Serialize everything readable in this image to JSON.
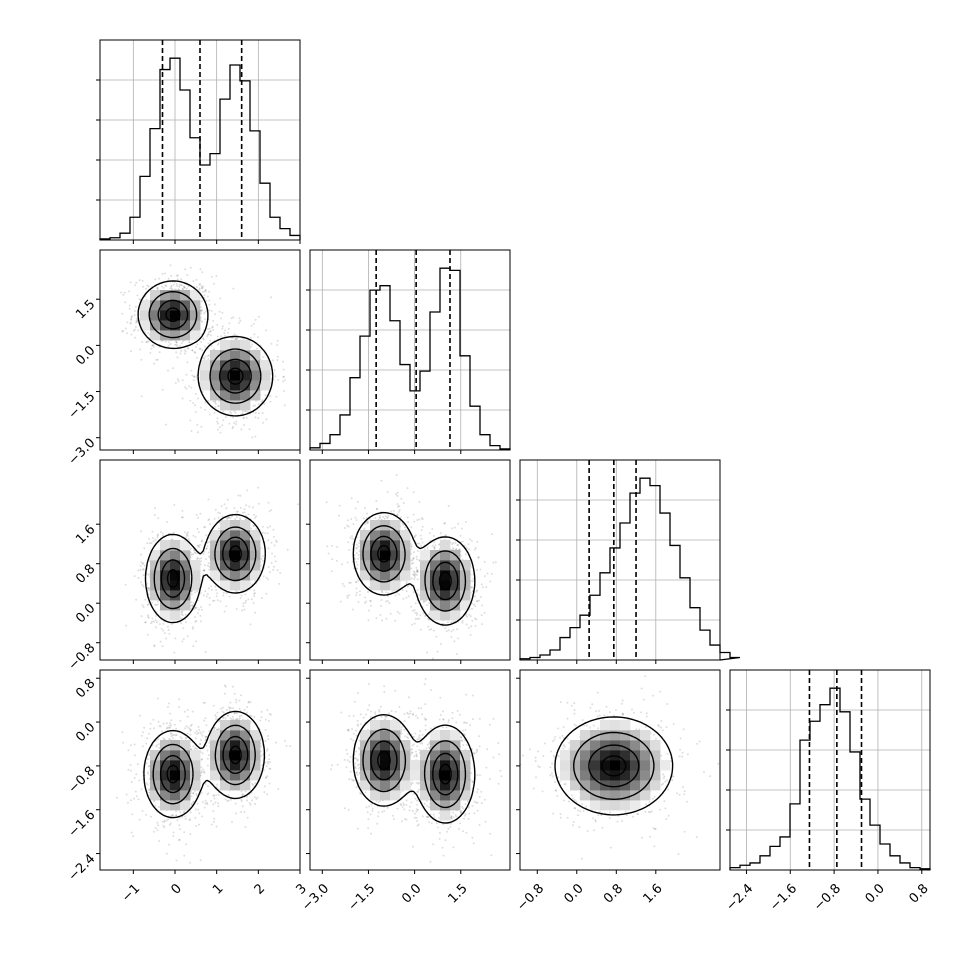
{
  "chart_data": {
    "type": "corner",
    "params": 4,
    "grid": true,
    "axes": [
      {
        "range": [
          -1.8,
          3.0
        ],
        "ticks": [
          -1,
          0,
          1,
          2,
          3
        ],
        "tick_labels": [
          "−1",
          "0",
          "1",
          "2",
          "3"
        ]
      },
      {
        "range": [
          -3.4,
          3.1
        ],
        "ticks": [
          -3.0,
          -1.5,
          0.0,
          1.5
        ],
        "tick_labels": [
          "−3.0",
          "−1.5",
          "0.0",
          "1.5"
        ]
      },
      {
        "range": [
          -1.15,
          2.9
        ],
        "ticks": [
          -0.8,
          0.0,
          0.8,
          1.6
        ],
        "tick_labels": [
          "−0.8",
          "0.0",
          "0.8",
          "1.6"
        ]
      },
      {
        "range": [
          -2.7,
          0.95
        ],
        "ticks": [
          -2.4,
          -1.6,
          -0.8,
          0.0,
          0.8
        ],
        "tick_labels": [
          "−2.4",
          "−1.6",
          "−0.8",
          "0.0",
          "0.8"
        ]
      }
    ],
    "histograms": [
      {
        "param": 0,
        "bin_start": -1.8,
        "bin_width": 0.24,
        "counts": [
          0.5,
          1,
          3,
          10,
          28,
          49,
          75,
          80,
          66,
          45,
          33,
          38,
          62,
          77,
          70,
          48,
          25,
          10,
          5,
          2
        ],
        "quantiles": [
          -0.3,
          0.6,
          1.6
        ]
      },
      {
        "param": 1,
        "bin_start": -3.4,
        "bin_width": 0.325,
        "counts": [
          1,
          3,
          7,
          16,
          33,
          52,
          73,
          75,
          59,
          39,
          27,
          36,
          63,
          83,
          82,
          43,
          20,
          7,
          2,
          0.5
        ],
        "quantiles": [
          -1.25,
          0.05,
          1.15
        ]
      },
      {
        "param": 2,
        "bin_start": -1.15,
        "bin_width": 0.2025,
        "counts": [
          0.5,
          1,
          2,
          4,
          9,
          13,
          18,
          26,
          35,
          45,
          55,
          67,
          73,
          70,
          59,
          46,
          33,
          21,
          12,
          6,
          3,
          1
        ],
        "quantiles": [
          0.25,
          0.75,
          1.2
        ]
      },
      {
        "param": 3,
        "bin_start": -2.7,
        "bin_width": 0.1825,
        "counts": [
          1,
          2,
          3,
          6,
          10,
          14,
          28,
          55,
          63,
          70,
          77,
          67,
          50,
          30,
          19,
          11,
          6,
          3,
          1,
          0.5
        ],
        "quantiles": [
          -1.25,
          -0.75,
          -0.3
        ]
      }
    ],
    "pairs": [
      {
        "x": 0,
        "y": 1,
        "modes": [
          {
            "x": -0.05,
            "y": 1.0,
            "sx": 0.42,
            "sy": 0.55,
            "w": 1
          },
          {
            "x": 1.45,
            "y": -1.0,
            "sx": 0.45,
            "sy": 0.65,
            "w": 1
          }
        ]
      },
      {
        "x": 0,
        "y": 2,
        "modes": [
          {
            "x": -0.05,
            "y": 0.5,
            "sx": 0.33,
            "sy": 0.45,
            "w": 1
          },
          {
            "x": 1.45,
            "y": 1.0,
            "sx": 0.36,
            "sy": 0.4,
            "w": 1
          }
        ]
      },
      {
        "x": 0,
        "y": 3,
        "modes": [
          {
            "x": -0.05,
            "y": -0.95,
            "sx": 0.35,
            "sy": 0.4,
            "w": 1
          },
          {
            "x": 1.45,
            "y": -0.6,
            "sx": 0.35,
            "sy": 0.4,
            "w": 1
          }
        ]
      },
      {
        "x": 1,
        "y": 2,
        "modes": [
          {
            "x": -1.0,
            "y": 1.0,
            "sx": 0.5,
            "sy": 0.42,
            "w": 1
          },
          {
            "x": 1.0,
            "y": 0.45,
            "sx": 0.48,
            "sy": 0.45,
            "w": 1
          }
        ]
      },
      {
        "x": 1,
        "y": 3,
        "modes": [
          {
            "x": -1.0,
            "y": -0.7,
            "sx": 0.5,
            "sy": 0.42,
            "w": 1
          },
          {
            "x": 1.0,
            "y": -0.95,
            "sx": 0.48,
            "sy": 0.45,
            "w": 1
          }
        ]
      },
      {
        "x": 2,
        "y": 3,
        "modes": [
          {
            "x": 0.75,
            "y": -0.8,
            "sx": 0.6,
            "sy": 0.45,
            "w": 1
          }
        ]
      }
    ]
  }
}
